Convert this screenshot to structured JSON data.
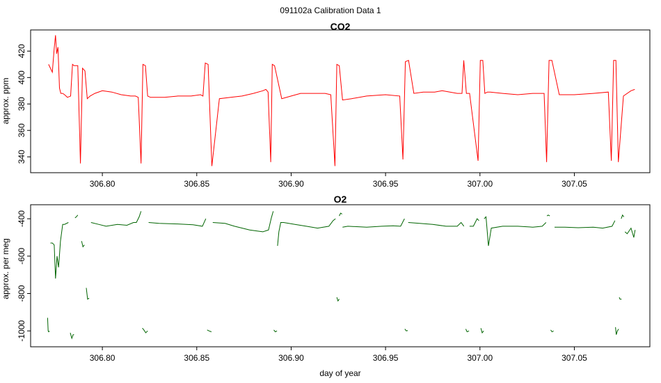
{
  "figure_title": "091102a   Calibration Data 1",
  "chart_data": [
    {
      "type": "line",
      "title": "CO2",
      "xlabel": "",
      "ylabel": "approx. ppm",
      "xlim": [
        306.762,
        307.09
      ],
      "ylim": [
        328,
        436
      ],
      "xticks": [
        306.8,
        306.85,
        306.9,
        306.95,
        307.0,
        307.05
      ],
      "xtick_labels": [
        "306.80",
        "306.85",
        "306.90",
        "306.95",
        "307.00",
        "307.05"
      ],
      "yticks": [
        340,
        360,
        380,
        400,
        420
      ],
      "ytick_labels": [
        "340",
        "360",
        "380",
        "400",
        "420"
      ],
      "grid": false,
      "color": "#ff0000",
      "x": [
        306.7715,
        306.7725,
        306.7735,
        306.7745,
        306.7752,
        306.7758,
        306.7765,
        306.7773,
        306.778,
        306.779,
        306.78,
        306.7815,
        306.7832,
        306.7842,
        306.785,
        306.787,
        306.7884,
        306.7895,
        306.7908,
        306.792,
        306.7935,
        306.796,
        306.8,
        306.805,
        306.81,
        306.815,
        306.8175,
        306.819,
        306.8205,
        306.8215,
        306.8228,
        306.824,
        306.8255,
        306.828,
        306.833,
        306.84,
        306.847,
        306.852,
        306.8533,
        306.8545,
        306.856,
        306.858,
        306.862,
        306.868,
        306.874,
        306.88,
        306.885,
        306.8866,
        306.8878,
        306.8892,
        306.89,
        306.8912,
        306.895,
        306.9,
        306.905,
        306.91,
        306.918,
        306.921,
        306.9232,
        306.9242,
        306.9255,
        306.9272,
        306.932,
        306.94,
        306.95,
        306.9575,
        306.9592,
        306.9605,
        306.9622,
        306.965,
        306.97,
        306.976,
        306.98,
        306.988,
        306.9905,
        306.9914,
        306.9928,
        306.9945,
        306.999,
        307.0002,
        307.0015,
        307.0026,
        307.004,
        307.0055,
        307.012,
        307.02,
        307.028,
        307.034,
        307.0353,
        307.0366,
        307.0381,
        307.042,
        307.05,
        307.06,
        307.068,
        307.0696,
        307.0708,
        307.072,
        307.0733,
        307.076,
        307.08,
        307.082
      ],
      "y": [
        410,
        407,
        404,
        422,
        432,
        418,
        423,
        392,
        388,
        388,
        387,
        385,
        386,
        410,
        409,
        409,
        335,
        407,
        405,
        384,
        386,
        388,
        390,
        389,
        387,
        386,
        386,
        385,
        335,
        410,
        409,
        386,
        385,
        385,
        385,
        386,
        386,
        387,
        386,
        411,
        410,
        333,
        384,
        385,
        386,
        388,
        390,
        391,
        389,
        336,
        410,
        409,
        384,
        386,
        388,
        388,
        388,
        387,
        333,
        410,
        409,
        383,
        384,
        386,
        387,
        386,
        338,
        412,
        413,
        388,
        389,
        389,
        390,
        388,
        388,
        413,
        388,
        388,
        337,
        413,
        413,
        388,
        389,
        389,
        388,
        387,
        388,
        388,
        336,
        413,
        413,
        387,
        387,
        388,
        389,
        337,
        413,
        413,
        336,
        386,
        390,
        391
      ]
    },
    {
      "type": "line",
      "title": "O2",
      "xlabel": "day of year",
      "ylabel": "approx. per meg",
      "xlim": [
        306.762,
        307.09
      ],
      "ylim": [
        -1085,
        -325
      ],
      "xticks": [
        306.8,
        306.85,
        306.9,
        306.95,
        307.0,
        307.05
      ],
      "xtick_labels": [
        "306.80",
        "306.85",
        "306.90",
        "306.95",
        "307.00",
        "307.05"
      ],
      "yticks": [
        -1000,
        -800,
        -600,
        -400
      ],
      "ytick_labels": [
        "-1000",
        "-800",
        "-600",
        "-400"
      ],
      "grid": false,
      "color": "#006400",
      "segments": [
        {
          "x": [
            306.771,
            306.7713,
            306.7716,
            306.772
          ],
          "y": [
            -930,
            -1000,
            -1005,
            -1000
          ]
        },
        {
          "x": [
            306.7725,
            306.7735,
            306.7745,
            306.7752,
            306.776,
            306.7768,
            306.7778,
            306.779,
            306.78,
            306.782
          ],
          "y": [
            -530,
            -530,
            -540,
            -720,
            -600,
            -660,
            -520,
            -430,
            -430,
            -420
          ]
        },
        {
          "x": [
            306.783,
            306.7838,
            306.7845,
            306.785
          ],
          "y": [
            -1010,
            -1040,
            -1020,
            -1020
          ]
        },
        {
          "x": [
            306.7855,
            306.7862,
            306.787
          ],
          "y": [
            -395,
            -390,
            -380
          ]
        },
        {
          "x": [
            306.789,
            306.7897,
            306.7905
          ],
          "y": [
            -520,
            -550,
            -540
          ]
        },
        {
          "x": [
            306.7915,
            306.7922,
            306.793
          ],
          "y": [
            -770,
            -830,
            -825
          ]
        },
        {
          "x": [
            306.794,
            306.798,
            306.802,
            306.808,
            306.813,
            306.8165,
            306.818,
            306.8195,
            306.8205
          ],
          "y": [
            -420,
            -430,
            -440,
            -430,
            -435,
            -420,
            -420,
            -390,
            -360
          ]
        },
        {
          "x": [
            306.8212,
            306.822,
            306.823,
            306.824
          ],
          "y": [
            -985,
            -995,
            -1010,
            -1000
          ]
        },
        {
          "x": [
            306.8245,
            306.83,
            306.84,
            306.848,
            306.853,
            306.8548
          ],
          "y": [
            -420,
            -425,
            -428,
            -432,
            -440,
            -400
          ]
        },
        {
          "x": [
            306.8555,
            306.8565,
            306.8578
          ],
          "y": [
            -995,
            -1000,
            -1005
          ]
        },
        {
          "x": [
            306.8585,
            306.865,
            306.87,
            306.878,
            306.885,
            306.888,
            306.8895,
            306.8905
          ],
          "y": [
            -420,
            -425,
            -440,
            -460,
            -470,
            -460,
            -395,
            -360
          ]
        },
        {
          "x": [
            306.8908,
            306.8916,
            306.8925
          ],
          "y": [
            -995,
            -1005,
            -1000
          ]
        },
        {
          "x": [
            306.8928,
            306.8935,
            306.8945,
            306.896,
            306.902,
            306.908,
            306.914,
            306.92,
            306.9222,
            306.9235
          ],
          "y": [
            -545,
            -470,
            -420,
            -420,
            -430,
            -440,
            -450,
            -440,
            -410,
            -400
          ]
        },
        {
          "x": [
            306.9242,
            306.9248,
            306.9255
          ],
          "y": [
            -820,
            -840,
            -830
          ]
        },
        {
          "x": [
            306.9255,
            306.9262,
            306.927
          ],
          "y": [
            -385,
            -370,
            -375
          ]
        },
        {
          "x": [
            306.9272,
            306.93,
            306.94,
            306.948,
            306.954,
            306.958,
            306.96
          ],
          "y": [
            -445,
            -440,
            -445,
            -440,
            -438,
            -440,
            -400
          ]
        },
        {
          "x": [
            306.9602,
            306.961,
            306.9618
          ],
          "y": [
            -990,
            -1000,
            -998
          ]
        },
        {
          "x": [
            306.962,
            306.968,
            306.975,
            306.982,
            306.988,
            306.99,
            306.9915
          ],
          "y": [
            -420,
            -425,
            -430,
            -440,
            -440,
            -420,
            -440
          ]
        },
        {
          "x": [
            306.9925,
            306.9932,
            306.9942
          ],
          "y": [
            -990,
            -1005,
            -1000
          ]
        },
        {
          "x": [
            306.9945,
            306.9965,
            306.9985,
            306.9995
          ],
          "y": [
            -440,
            -440,
            -400,
            -410
          ]
        },
        {
          "x": [
            307.0005,
            307.0012,
            307.002
          ],
          "y": [
            -985,
            -1010,
            -1000
          ]
        },
        {
          "x": [
            307.0022,
            307.0032,
            307.0045,
            307.006,
            307.012,
            307.02,
            307.028,
            307.033,
            307.035
          ],
          "y": [
            -400,
            -390,
            -545,
            -450,
            -440,
            -440,
            -445,
            -440,
            -420
          ]
        },
        {
          "x": [
            307.0355,
            307.0362,
            307.037
          ],
          "y": [
            -385,
            -380,
            -385
          ]
        },
        {
          "x": [
            307.0375,
            307.0382,
            307.039
          ],
          "y": [
            -995,
            -1005,
            -1000
          ]
        },
        {
          "x": [
            307.0395,
            307.045,
            307.052,
            307.06,
            307.065,
            307.07,
            307.0715
          ],
          "y": [
            -445,
            -445,
            -448,
            -445,
            -450,
            -440,
            -410
          ]
        },
        {
          "x": [
            307.0718,
            307.0722,
            307.0728,
            307.0735
          ],
          "y": [
            -980,
            -1020,
            -1000,
            -990
          ]
        },
        {
          "x": [
            307.0738,
            307.0742,
            307.075
          ],
          "y": [
            -820,
            -830,
            -830
          ]
        },
        {
          "x": [
            307.0748,
            307.0755,
            307.0762
          ],
          "y": [
            -400,
            -380,
            -390
          ]
        },
        {
          "x": [
            307.0768,
            307.078,
            307.08,
            307.0815,
            307.0822
          ],
          "y": [
            -470,
            -480,
            -450,
            -500,
            -460
          ]
        }
      ]
    }
  ]
}
